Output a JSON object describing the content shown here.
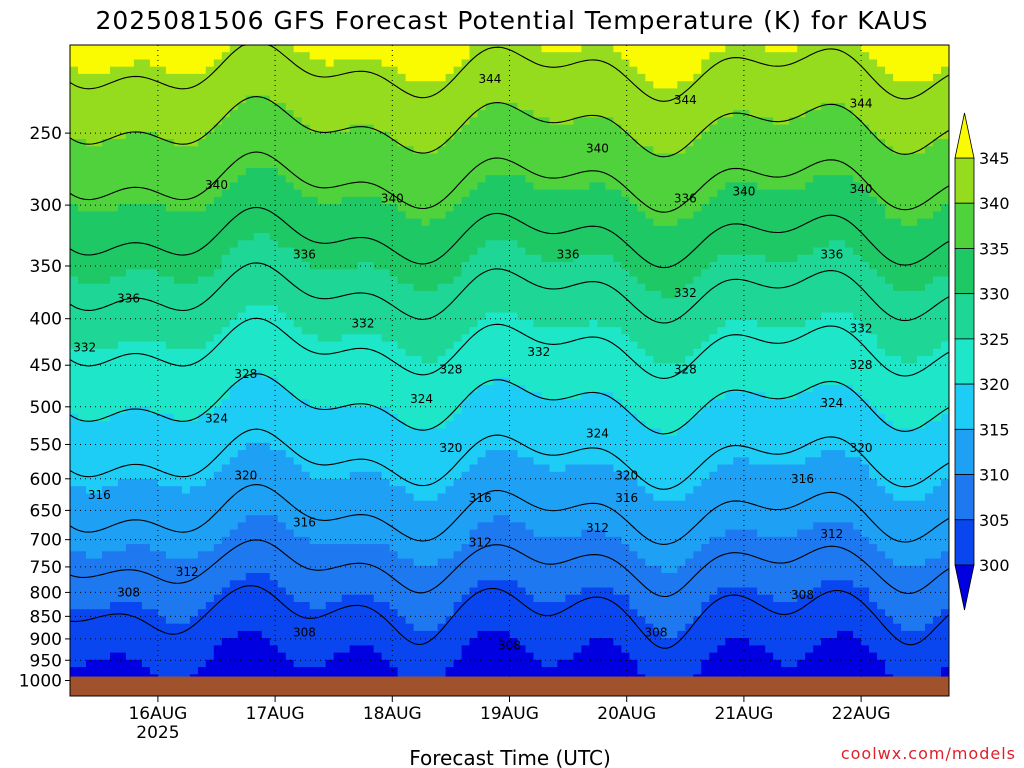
{
  "chart_data": {
    "type": "heatmap",
    "title": "2025081506 GFS Forecast Potential Temperature (K) for KAUS",
    "xlabel": "Forecast Time (UTC)",
    "ylabel": "",
    "y_scale": "log",
    "y_reversed": true,
    "y_ticks": [
      250,
      300,
      350,
      400,
      450,
      500,
      550,
      600,
      650,
      700,
      750,
      800,
      850,
      900,
      950,
      1000
    ],
    "ylim": [
      1000,
      200
    ],
    "x_ticks": [
      {
        "value": "2025-08-16T00",
        "label": "16AUG",
        "sublabel": "2025"
      },
      {
        "value": "2025-08-17T00",
        "label": "17AUG"
      },
      {
        "value": "2025-08-18T00",
        "label": "18AUG"
      },
      {
        "value": "2025-08-19T00",
        "label": "19AUG"
      },
      {
        "value": "2025-08-20T00",
        "label": "20AUG"
      },
      {
        "value": "2025-08-21T00",
        "label": "21AUG"
      },
      {
        "value": "2025-08-22T00",
        "label": "22AUG"
      }
    ],
    "xlim": [
      "2025-08-15T06",
      "2025-08-22T18"
    ],
    "grid": true,
    "colorbar": {
      "levels": [
        300,
        305,
        310,
        315,
        320,
        325,
        330,
        335,
        340,
        345
      ],
      "labels": [
        "300",
        "305",
        "310",
        "315",
        "320",
        "325",
        "330",
        "335",
        "340",
        "345"
      ],
      "colors": [
        "#0000e0",
        "#0a46f0",
        "#1e78f0",
        "#1ea0f5",
        "#1ecdf5",
        "#1ee6c8",
        "#1ed796",
        "#1ec864",
        "#50d23c",
        "#96dc1e",
        "#fafa00"
      ],
      "extend": "both"
    },
    "ground_color": "#a0522d",
    "contour_levels": [
      304,
      308,
      312,
      316,
      320,
      324,
      328,
      332,
      336,
      340,
      344
    ],
    "contour_label_values": [
      {
        "x": "2025-08-15T14",
        "p": 880,
        "v": 308
      },
      {
        "x": "2025-08-16T05",
        "p": 780,
        "v": 312
      },
      {
        "x": "2025-08-16T06",
        "p": 650,
        "v": 316
      },
      {
        "x": "2025-08-17T00",
        "p": 450,
        "v": 328
      },
      {
        "x": "2025-08-16T06",
        "p": 500,
        "v": 324
      },
      {
        "x": "2025-08-16T06",
        "p": 300,
        "v": 340
      }
    ],
    "contour_labels": [
      {
        "text": "344",
        "at": "2025-08-18T20 / 218hPa"
      },
      {
        "text": "344",
        "at": "2025-08-20T12 / 230hPa"
      },
      {
        "text": "344",
        "at": "2025-08-22T00 / 232hPa"
      },
      {
        "text": "340",
        "at": "2025-08-16T12 / 285hPa"
      },
      {
        "text": "340",
        "at": "2025-08-18T00 / 295hPa"
      },
      {
        "text": "340",
        "at": "2025-08-19T18 / 260hPa"
      },
      {
        "text": "340",
        "at": "2025-08-21T00 / 290hPa"
      },
      {
        "text": "340",
        "at": "2025-08-22T00 / 288hPa"
      },
      {
        "text": "336",
        "at": "2025-08-17T06 / 340hPa"
      },
      {
        "text": "336",
        "at": "2025-08-15T18 / 380hPa"
      },
      {
        "text": "336",
        "at": "2025-08-19T12 / 340hPa"
      },
      {
        "text": "336",
        "at": "2025-08-20T12 / 295hPa"
      },
      {
        "text": "336",
        "at": "2025-08-21T18 / 340hPa"
      },
      {
        "text": "332",
        "at": "2025-08-15T09 / 430hPa"
      },
      {
        "text": "332",
        "at": "2025-08-17T18 / 405hPa"
      },
      {
        "text": "332",
        "at": "2025-08-19T06 / 435hPa"
      },
      {
        "text": "332",
        "at": "2025-08-20T12 / 375hPa"
      },
      {
        "text": "332",
        "at": "2025-08-22T00 / 410hPa"
      },
      {
        "text": "328",
        "at": "2025-08-16T18 / 460hPa"
      },
      {
        "text": "328",
        "at": "2025-08-18T12 / 455hPa"
      },
      {
        "text": "328",
        "at": "2025-08-20T12 / 455hPa"
      },
      {
        "text": "328",
        "at": "2025-08-22T00 / 450hPa"
      },
      {
        "text": "324",
        "at": "2025-08-16T12 / 515hPa"
      },
      {
        "text": "324",
        "at": "2025-08-18T06 / 490hPa"
      },
      {
        "text": "324",
        "at": "2025-08-19T18 / 535hPa"
      },
      {
        "text": "324",
        "at": "2025-08-21T18 / 495hPa"
      },
      {
        "text": "320",
        "at": "2025-08-16T18 / 595hPa"
      },
      {
        "text": "320",
        "at": "2025-08-18T12 / 555hPa"
      },
      {
        "text": "320",
        "at": "2025-08-20T00 / 595hPa"
      },
      {
        "text": "320",
        "at": "2025-08-22T00 / 555hPa"
      },
      {
        "text": "316",
        "at": "2025-08-15T12 / 625hPa"
      },
      {
        "text": "316",
        "at": "2025-08-17T06 / 670hPa"
      },
      {
        "text": "316",
        "at": "2025-08-18T18 / 630hPa"
      },
      {
        "text": "316",
        "at": "2025-08-20T00 / 630hPa"
      },
      {
        "text": "316",
        "at": "2025-08-21T12 / 600hPa"
      },
      {
        "text": "312",
        "at": "2025-08-16T06 / 760hPa"
      },
      {
        "text": "312",
        "at": "2025-08-18T18 / 705hPa"
      },
      {
        "text": "312",
        "at": "2025-08-19T18 / 680hPa"
      },
      {
        "text": "312",
        "at": "2025-08-21T18 / 690hPa"
      },
      {
        "text": "308",
        "at": "2025-08-15T18 / 800hPa"
      },
      {
        "text": "308",
        "at": "2025-08-17T06 / 885hPa"
      },
      {
        "text": "308",
        "at": "2025-08-19T00 / 915hPa"
      },
      {
        "text": "308",
        "at": "2025-08-20T06 / 885hPa"
      },
      {
        "text": "308",
        "at": "2025-08-21T12 / 805hPa"
      }
    ]
  },
  "credit": "coolwx.com/models"
}
